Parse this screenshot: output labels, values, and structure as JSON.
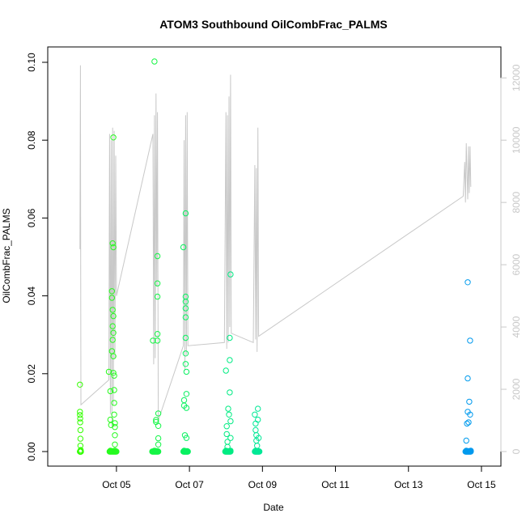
{
  "chart_data": {
    "type": "scatter",
    "title": "ATOM3 Southbound OilCombFrac_PALMS",
    "xlabel": "Date",
    "ylabel": "OilCombFrac_PALMS",
    "x_axis": {
      "type": "date",
      "range": [
        "2017-10-03T14:00",
        "2017-10-15T08:00"
      ],
      "ticks": [
        "Oct 05",
        "Oct 07",
        "Oct 09",
        "Oct 11",
        "Oct 13",
        "Oct 15"
      ],
      "tick_dates": [
        "2017-10-05",
        "2017-10-07",
        "2017-10-09",
        "2017-10-11",
        "2017-10-13",
        "2017-10-15"
      ]
    },
    "y_axis": {
      "range": [
        0,
        0.1
      ],
      "ticks": [
        "0.00",
        "0.02",
        "0.04",
        "0.06",
        "0.08",
        "0.10"
      ],
      "tick_values": [
        0,
        0.02,
        0.04,
        0.06,
        0.08,
        0.1
      ]
    },
    "y2_axis": {
      "range": [
        0,
        12500
      ],
      "ticks": [
        "0",
        "2000",
        "4000",
        "6000",
        "8000",
        "10000",
        "12000"
      ],
      "tick_values": [
        0,
        2000,
        4000,
        6000,
        8000,
        10000,
        12000
      ],
      "color": "#c8c8c8"
    },
    "grid": false,
    "series": [
      {
        "marker": "open-circle",
        "color_by_time": [
          "#33ff00",
          "#00ee77",
          "#00ddcc",
          "#0099ee"
        ],
        "points": [
          [
            "2017-10-04T00:00",
            0.0172
          ],
          [
            "2017-10-04T00:00",
            0.0102
          ],
          [
            "2017-10-04T00:00",
            0.0094
          ],
          [
            "2017-10-04T00:10",
            0.0085
          ],
          [
            "2017-10-04T00:10",
            0.0075
          ],
          [
            "2017-10-04T00:20",
            0.0055
          ],
          [
            "2017-10-04T00:20",
            0.0033
          ],
          [
            "2017-10-04T00:20",
            0.0015
          ],
          [
            "2017-10-04T00:30",
            0.0004
          ],
          [
            "2017-10-04T00:30",
            0.0001
          ],
          [
            "2017-10-04T19:00",
            0.0205
          ],
          [
            "2017-10-04T20:00",
            0.0155
          ],
          [
            "2017-10-04T20:00",
            0.0082
          ],
          [
            "2017-10-04T20:30",
            0.0068
          ],
          [
            "2017-10-04T21:00",
            0.0412
          ],
          [
            "2017-10-04T21:00",
            0.0395
          ],
          [
            "2017-10-04T21:00",
            0.0258
          ],
          [
            "2017-10-04T21:30",
            0.0535
          ],
          [
            "2017-10-04T21:30",
            0.0364
          ],
          [
            "2017-10-04T21:30",
            0.0322
          ],
          [
            "2017-10-04T21:30",
            0.0287
          ],
          [
            "2017-10-04T22:00",
            0.0807
          ],
          [
            "2017-10-04T22:00",
            0.0525
          ],
          [
            "2017-10-04T22:00",
            0.0348
          ],
          [
            "2017-10-04T22:00",
            0.0305
          ],
          [
            "2017-10-04T22:00",
            0.0245
          ],
          [
            "2017-10-04T22:00",
            0.0202
          ],
          [
            "2017-10-04T22:30",
            0.0195
          ],
          [
            "2017-10-04T22:30",
            0.0158
          ],
          [
            "2017-10-04T22:30",
            0.0125
          ],
          [
            "2017-10-04T22:30",
            0.0095
          ],
          [
            "2017-10-04T23:00",
            0.0073
          ],
          [
            "2017-10-04T23:00",
            0.0063
          ],
          [
            "2017-10-04T23:00",
            0.0042
          ],
          [
            "2017-10-04T23:00",
            0.0018
          ],
          [
            "2017-10-04T20:00",
            0.0002
          ],
          [
            "2017-10-04T21:00",
            0.0001
          ],
          [
            "2017-10-04T22:00",
            0.0001
          ],
          [
            "2017-10-04T23:00",
            0.0002
          ],
          [
            "2017-10-06T00:00",
            0.0285
          ],
          [
            "2017-10-06T01:00",
            0.1002
          ],
          [
            "2017-10-06T02:00",
            0.0081
          ],
          [
            "2017-10-06T02:00",
            0.0076
          ],
          [
            "2017-10-06T03:00",
            0.0502
          ],
          [
            "2017-10-06T03:00",
            0.0432
          ],
          [
            "2017-10-06T03:00",
            0.0398
          ],
          [
            "2017-10-06T03:00",
            0.0302
          ],
          [
            "2017-10-06T03:00",
            0.0285
          ],
          [
            "2017-10-06T03:30",
            0.0098
          ],
          [
            "2017-10-06T03:30",
            0.0066
          ],
          [
            "2017-10-06T03:30",
            0.0034
          ],
          [
            "2017-10-06T03:30",
            0.0018
          ],
          [
            "2017-10-06T01:00",
            0.0002
          ],
          [
            "2017-10-06T02:00",
            0.0001
          ],
          [
            "2017-10-06T03:00",
            0.0001
          ],
          [
            "2017-10-06T20:00",
            0.0525
          ],
          [
            "2017-10-06T20:30",
            0.0132
          ],
          [
            "2017-10-06T20:30",
            0.0118
          ],
          [
            "2017-10-06T21:00",
            0.0042
          ],
          [
            "2017-10-06T21:30",
            0.0612
          ],
          [
            "2017-10-06T21:30",
            0.0398
          ],
          [
            "2017-10-06T21:30",
            0.0385
          ],
          [
            "2017-10-06T21:30",
            0.0368
          ],
          [
            "2017-10-06T21:30",
            0.0345
          ],
          [
            "2017-10-06T21:30",
            0.0292
          ],
          [
            "2017-10-06T21:30",
            0.0252
          ],
          [
            "2017-10-06T21:30",
            0.0225
          ],
          [
            "2017-10-06T22:00",
            0.0205
          ],
          [
            "2017-10-06T22:00",
            0.0148
          ],
          [
            "2017-10-06T22:00",
            0.0112
          ],
          [
            "2017-10-06T22:00",
            0.0035
          ],
          [
            "2017-10-06T20:30",
            0.0002
          ],
          [
            "2017-10-06T21:30",
            0.0001
          ],
          [
            "2017-10-06T22:30",
            0.0001
          ],
          [
            "2017-10-08T00:00",
            0.0208
          ],
          [
            "2017-10-08T00:30",
            0.0065
          ],
          [
            "2017-10-08T00:30",
            0.0045
          ],
          [
            "2017-10-08T01:00",
            0.0025
          ],
          [
            "2017-10-08T01:00",
            0.0012
          ],
          [
            "2017-10-08T01:30",
            0.011
          ],
          [
            "2017-10-08T02:00",
            0.0095
          ],
          [
            "2017-10-08T02:30",
            0.0292
          ],
          [
            "2017-10-08T02:30",
            0.0235
          ],
          [
            "2017-10-08T02:30",
            0.0152
          ],
          [
            "2017-10-08T03:00",
            0.0455
          ],
          [
            "2017-10-08T03:00",
            0.0078
          ],
          [
            "2017-10-08T03:00",
            0.0035
          ],
          [
            "2017-10-08T00:00",
            0.0002
          ],
          [
            "2017-10-08T01:00",
            0.0001
          ],
          [
            "2017-10-08T02:00",
            0.0001
          ],
          [
            "2017-10-08T03:00",
            0.0002
          ],
          [
            "2017-10-08T19:00",
            0.0095
          ],
          [
            "2017-10-08T19:30",
            0.0072
          ],
          [
            "2017-10-08T19:30",
            0.0055
          ],
          [
            "2017-10-08T20:00",
            0.0042
          ],
          [
            "2017-10-08T20:00",
            0.0028
          ],
          [
            "2017-10-08T20:30",
            0.0015
          ],
          [
            "2017-10-08T21:00",
            0.011
          ],
          [
            "2017-10-08T21:00",
            0.0082
          ],
          [
            "2017-10-08T21:30",
            0.0035
          ],
          [
            "2017-10-08T19:30",
            0.0002
          ],
          [
            "2017-10-08T20:30",
            0.0001
          ],
          [
            "2017-10-08T21:30",
            0.0001
          ],
          [
            "2017-10-14T14:00",
            0.0028
          ],
          [
            "2017-10-14T14:30",
            0.0072
          ],
          [
            "2017-10-14T15:00",
            0.0435
          ],
          [
            "2017-10-14T15:00",
            0.0188
          ],
          [
            "2017-10-14T15:00",
            0.0102
          ],
          [
            "2017-10-14T15:30",
            0.0075
          ],
          [
            "2017-10-14T16:00",
            0.0128
          ],
          [
            "2017-10-14T16:30",
            0.0285
          ],
          [
            "2017-10-14T16:30",
            0.0095
          ],
          [
            "2017-10-14T14:00",
            0.0002
          ],
          [
            "2017-10-14T15:00",
            0.0001
          ],
          [
            "2017-10-14T16:00",
            0.0001
          ],
          [
            "2017-10-14T17:00",
            0.0002
          ]
        ]
      },
      {
        "axis": "y2",
        "color": "#c8c8c8",
        "type": "line",
        "points": [
          [
            "2017-10-04T00:00",
            6500
          ],
          [
            "2017-10-04T00:20",
            12400
          ],
          [
            "2017-10-04T00:30",
            6400
          ],
          [
            "2017-10-04T00:40",
            1500
          ],
          [
            "2017-10-04T19:00",
            2300
          ],
          [
            "2017-10-04T19:30",
            10200
          ],
          [
            "2017-10-04T20:00",
            1200
          ],
          [
            "2017-10-04T20:30",
            10000
          ],
          [
            "2017-10-04T21:00",
            800
          ],
          [
            "2017-10-04T21:30",
            10400
          ],
          [
            "2017-10-04T22:00",
            1500
          ],
          [
            "2017-10-04T22:30",
            10300
          ],
          [
            "2017-10-04T23:00",
            3000
          ],
          [
            "2017-10-04T23:30",
            9500
          ],
          [
            "2017-10-05T00:00",
            5000
          ],
          [
            "2017-10-06T00:00",
            10200
          ],
          [
            "2017-10-06T00:30",
            2800
          ],
          [
            "2017-10-06T01:00",
            10800
          ],
          [
            "2017-10-06T01:30",
            3000
          ],
          [
            "2017-10-06T02:00",
            11500
          ],
          [
            "2017-10-06T02:30",
            5300
          ],
          [
            "2017-10-06T03:00",
            10900
          ],
          [
            "2017-10-06T03:30",
            1000
          ],
          [
            "2017-10-06T20:00",
            3400
          ],
          [
            "2017-10-06T20:30",
            10000
          ],
          [
            "2017-10-06T21:00",
            2600
          ],
          [
            "2017-10-06T21:30",
            10800
          ],
          [
            "2017-10-06T22:00",
            3100
          ],
          [
            "2017-10-06T22:30",
            10900
          ],
          [
            "2017-10-06T23:00",
            3400
          ],
          [
            "2017-10-07T23:00",
            3500
          ],
          [
            "2017-10-08T00:00",
            10900
          ],
          [
            "2017-10-08T00:30",
            3300
          ],
          [
            "2017-10-08T01:00",
            10800
          ],
          [
            "2017-10-08T01:30",
            3500
          ],
          [
            "2017-10-08T02:00",
            11400
          ],
          [
            "2017-10-08T02:30",
            4000
          ],
          [
            "2017-10-08T03:00",
            12100
          ],
          [
            "2017-10-08T03:30",
            3800
          ],
          [
            "2017-10-08T18:00",
            3500
          ],
          [
            "2017-10-08T19:00",
            9200
          ],
          [
            "2017-10-08T19:30",
            3600
          ],
          [
            "2017-10-08T20:00",
            9100
          ],
          [
            "2017-10-08T20:30",
            3200
          ],
          [
            "2017-10-08T21:00",
            10400
          ],
          [
            "2017-10-08T21:30",
            3700
          ],
          [
            "2017-10-14T12:00",
            8200
          ],
          [
            "2017-10-14T13:00",
            9300
          ],
          [
            "2017-10-14T13:30",
            8000
          ],
          [
            "2017-10-14T14:00",
            9900
          ],
          [
            "2017-10-14T15:00",
            8100
          ],
          [
            "2017-10-14T15:30",
            9800
          ],
          [
            "2017-10-14T16:00",
            8300
          ],
          [
            "2017-10-14T16:30",
            9800
          ],
          [
            "2017-10-14T17:00",
            8500
          ]
        ]
      }
    ]
  }
}
